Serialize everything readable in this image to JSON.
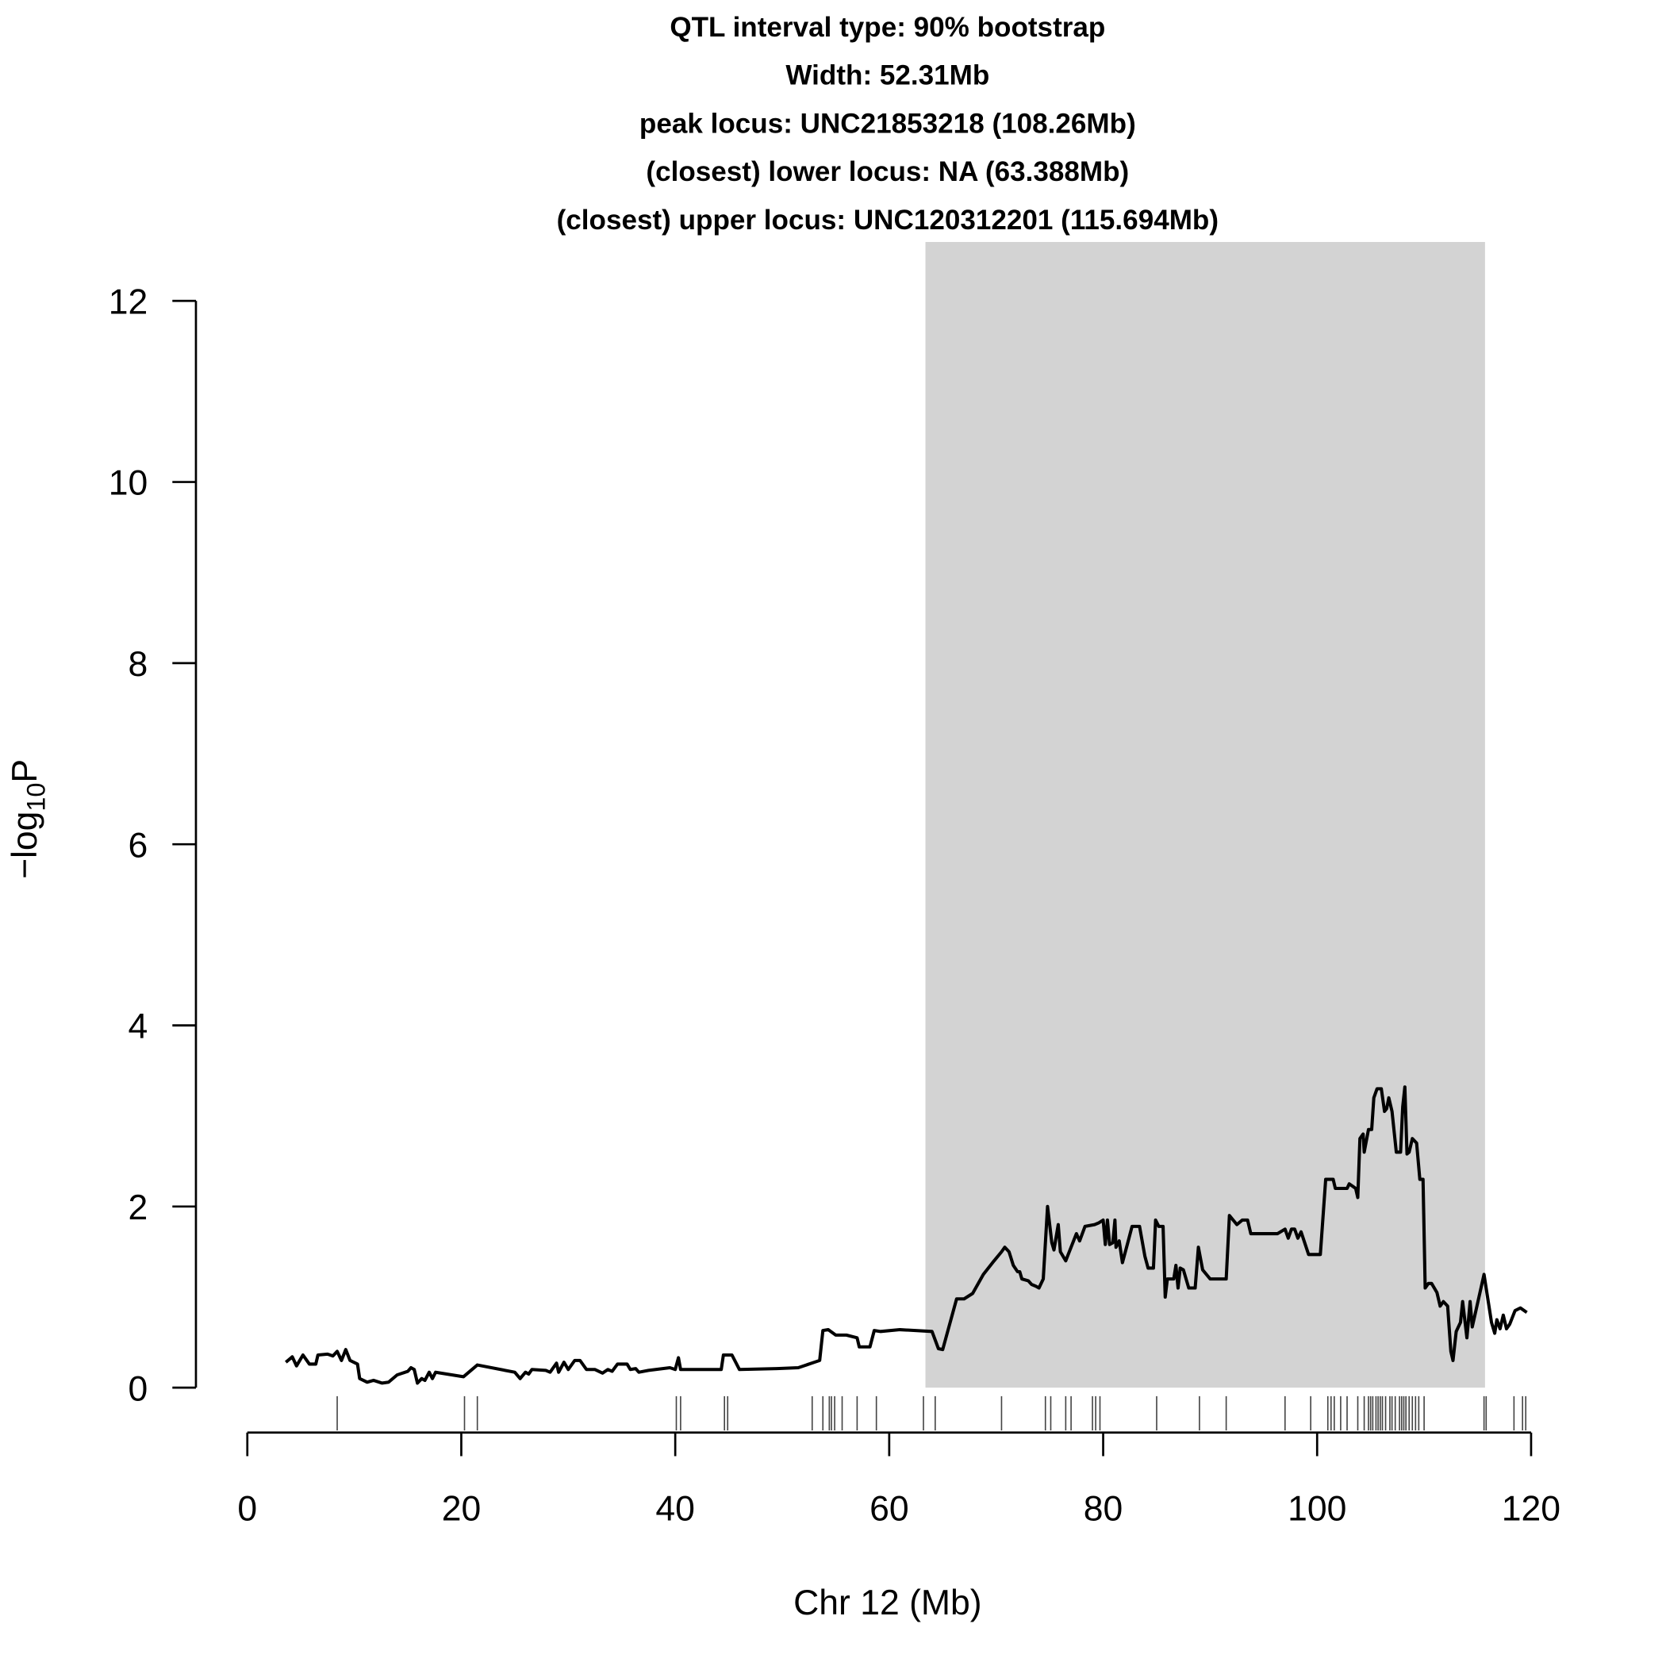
{
  "chart_data": {
    "type": "line",
    "title": [
      "QTL interval type: 90% bootstrap",
      "Width: 52.31Mb",
      "peak locus: UNC21853218 (108.26Mb)",
      "(closest) lower locus: NA (63.388Mb)",
      "(closest) upper locus: UNC120312201 (115.694Mb)"
    ],
    "xlabel": "Chr 12 (Mb)",
    "ylabel": {
      "main": "−log",
      "sub": "10",
      "end": "P"
    },
    "xlim": [
      0,
      120
    ],
    "xticks": [
      0,
      20,
      40,
      60,
      80,
      100,
      120
    ],
    "ylim": [
      0,
      12
    ],
    "yticks": [
      0,
      2,
      4,
      6,
      8,
      10,
      12
    ],
    "color": "#000000",
    "interval": {
      "xlim": [
        63.388,
        115.694
      ],
      "color": "#d3d3d3"
    },
    "rug_color": "#444444",
    "rug": [
      8.4,
      20.3,
      21.5,
      40.1,
      40.5,
      44.6,
      44.9,
      52.8,
      53.8,
      54.4,
      54.6,
      54.9,
      55.6,
      57.0,
      58.8,
      63.2,
      64.3,
      70.5,
      74.6,
      75.1,
      76.5,
      77.0,
      79.0,
      79.3,
      79.7,
      85.0,
      89.0,
      91.5,
      97.0,
      99.4,
      101.0,
      101.3,
      101.6,
      102.2,
      102.8,
      103.8,
      104.4,
      104.8,
      105.0,
      105.2,
      105.5,
      105.7,
      105.9,
      106.1,
      106.4,
      106.8,
      107.0,
      107.3,
      107.7,
      107.9,
      108.1,
      108.3,
      108.6,
      108.9,
      109.2,
      109.5,
      110.0,
      115.6,
      115.8,
      118.4,
      119.2,
      119.5
    ],
    "x": [
      3.6,
      4.2,
      4.6,
      5.2,
      5.8,
      6.4,
      6.6,
      7.5,
      8.0,
      8.4,
      8.8,
      9.2,
      9.6,
      10.3,
      10.5,
      11.2,
      11.8,
      12.6,
      13.2,
      14.0,
      15.0,
      15.3,
      15.6,
      15.9,
      16.3,
      16.6,
      17.0,
      17.3,
      17.6,
      20.2,
      21.5,
      25.0,
      25.5,
      26.0,
      26.3,
      26.6,
      27.9,
      28.3,
      28.9,
      29.1,
      29.6,
      30.0,
      30.6,
      31.1,
      31.7,
      32.5,
      33.2,
      33.7,
      34.1,
      34.6,
      35.5,
      35.8,
      36.3,
      36.6,
      37.5,
      39.5,
      40.0,
      40.3,
      40.5,
      44.3,
      44.5,
      45.3,
      46.0,
      49.5,
      51.5,
      53.0,
      53.5,
      53.8,
      54.3,
      55.0,
      56.0,
      57.0,
      57.2,
      58.2,
      58.6,
      59.2,
      61.0,
      64.0,
      64.6,
      65.0,
      66.3,
      67.0,
      67.8,
      68.8,
      69.8,
      70.5,
      70.8,
      71.2,
      71.6,
      72.0,
      72.2,
      72.4,
      73.0,
      73.3,
      73.7,
      74.0,
      74.4,
      74.8,
      75.2,
      75.4,
      75.8,
      76.0,
      76.5,
      77.0,
      77.5,
      77.8,
      78.3,
      79.2,
      79.6,
      80.0,
      80.2,
      80.4,
      80.6,
      80.9,
      81.1,
      81.2,
      81.5,
      81.8,
      82.3,
      82.7,
      83.4,
      83.9,
      84.2,
      84.7,
      84.9,
      85.2,
      85.6,
      85.8,
      86.0,
      86.6,
      86.8,
      87.0,
      87.2,
      87.5,
      88.0,
      88.6,
      88.9,
      89.3,
      90.0,
      91.5,
      91.8,
      92.5,
      93.0,
      93.5,
      93.8,
      96.3,
      97.0,
      97.3,
      97.6,
      97.9,
      98.2,
      98.5,
      99.2,
      100.3,
      100.8,
      101.5,
      101.7,
      102.8,
      103.0,
      103.6,
      103.8,
      104.0,
      104.3,
      104.4,
      104.8,
      105.1,
      105.3,
      105.6,
      106.0,
      106.3,
      106.5,
      106.7,
      107.0,
      107.4,
      107.8,
      108.0,
      108.2,
      108.4,
      108.6,
      108.9,
      109.3,
      109.6,
      109.9,
      110.1,
      110.4,
      110.7,
      111.2,
      111.5,
      111.8,
      112.2,
      112.5,
      112.7,
      113.0,
      113.4,
      113.6,
      114.0,
      114.3,
      114.5,
      115.6,
      116.3,
      116.6,
      116.8,
      117.1,
      117.4,
      117.7,
      118.0,
      118.5,
      119.0,
      119.6
    ],
    "values": [
      0.28,
      0.34,
      0.24,
      0.36,
      0.26,
      0.26,
      0.36,
      0.37,
      0.35,
      0.4,
      0.3,
      0.42,
      0.3,
      0.26,
      0.1,
      0.06,
      0.08,
      0.05,
      0.06,
      0.14,
      0.18,
      0.22,
      0.2,
      0.05,
      0.1,
      0.08,
      0.17,
      0.1,
      0.17,
      0.12,
      0.25,
      0.17,
      0.1,
      0.17,
      0.15,
      0.2,
      0.19,
      0.17,
      0.27,
      0.17,
      0.28,
      0.2,
      0.3,
      0.3,
      0.2,
      0.2,
      0.16,
      0.2,
      0.18,
      0.26,
      0.26,
      0.2,
      0.21,
      0.17,
      0.19,
      0.22,
      0.2,
      0.33,
      0.2,
      0.2,
      0.36,
      0.36,
      0.2,
      0.21,
      0.22,
      0.28,
      0.3,
      0.63,
      0.64,
      0.58,
      0.58,
      0.55,
      0.45,
      0.45,
      0.63,
      0.62,
      0.64,
      0.62,
      0.43,
      0.42,
      0.98,
      0.98,
      1.04,
      1.25,
      1.4,
      1.5,
      1.55,
      1.5,
      1.35,
      1.28,
      1.28,
      1.2,
      1.18,
      1.14,
      1.12,
      1.1,
      1.2,
      2.0,
      1.6,
      1.52,
      1.8,
      1.5,
      1.4,
      1.55,
      1.7,
      1.62,
      1.78,
      1.8,
      1.82,
      1.85,
      1.58,
      1.85,
      1.58,
      1.6,
      1.85,
      1.55,
      1.62,
      1.38,
      1.6,
      1.78,
      1.78,
      1.45,
      1.32,
      1.32,
      1.85,
      1.78,
      1.78,
      1.0,
      1.2,
      1.2,
      1.35,
      1.1,
      1.32,
      1.3,
      1.1,
      1.1,
      1.55,
      1.3,
      1.2,
      1.2,
      1.9,
      1.8,
      1.85,
      1.85,
      1.7,
      1.7,
      1.75,
      1.65,
      1.75,
      1.75,
      1.65,
      1.72,
      1.47,
      1.47,
      2.3,
      2.3,
      2.2,
      2.2,
      2.25,
      2.2,
      2.1,
      2.75,
      2.8,
      2.6,
      2.85,
      2.85,
      3.2,
      3.3,
      3.3,
      3.05,
      3.08,
      3.2,
      3.05,
      2.6,
      2.6,
      3.1,
      3.32,
      2.58,
      2.6,
      2.75,
      2.7,
      2.3,
      2.3,
      1.1,
      1.15,
      1.15,
      1.05,
      0.9,
      0.95,
      0.9,
      0.4,
      0.3,
      0.62,
      0.72,
      0.95,
      0.55,
      0.95,
      0.67,
      1.25,
      0.72,
      0.6,
      0.75,
      0.65,
      0.8,
      0.65,
      0.7,
      0.85,
      0.88,
      0.83
    ]
  }
}
